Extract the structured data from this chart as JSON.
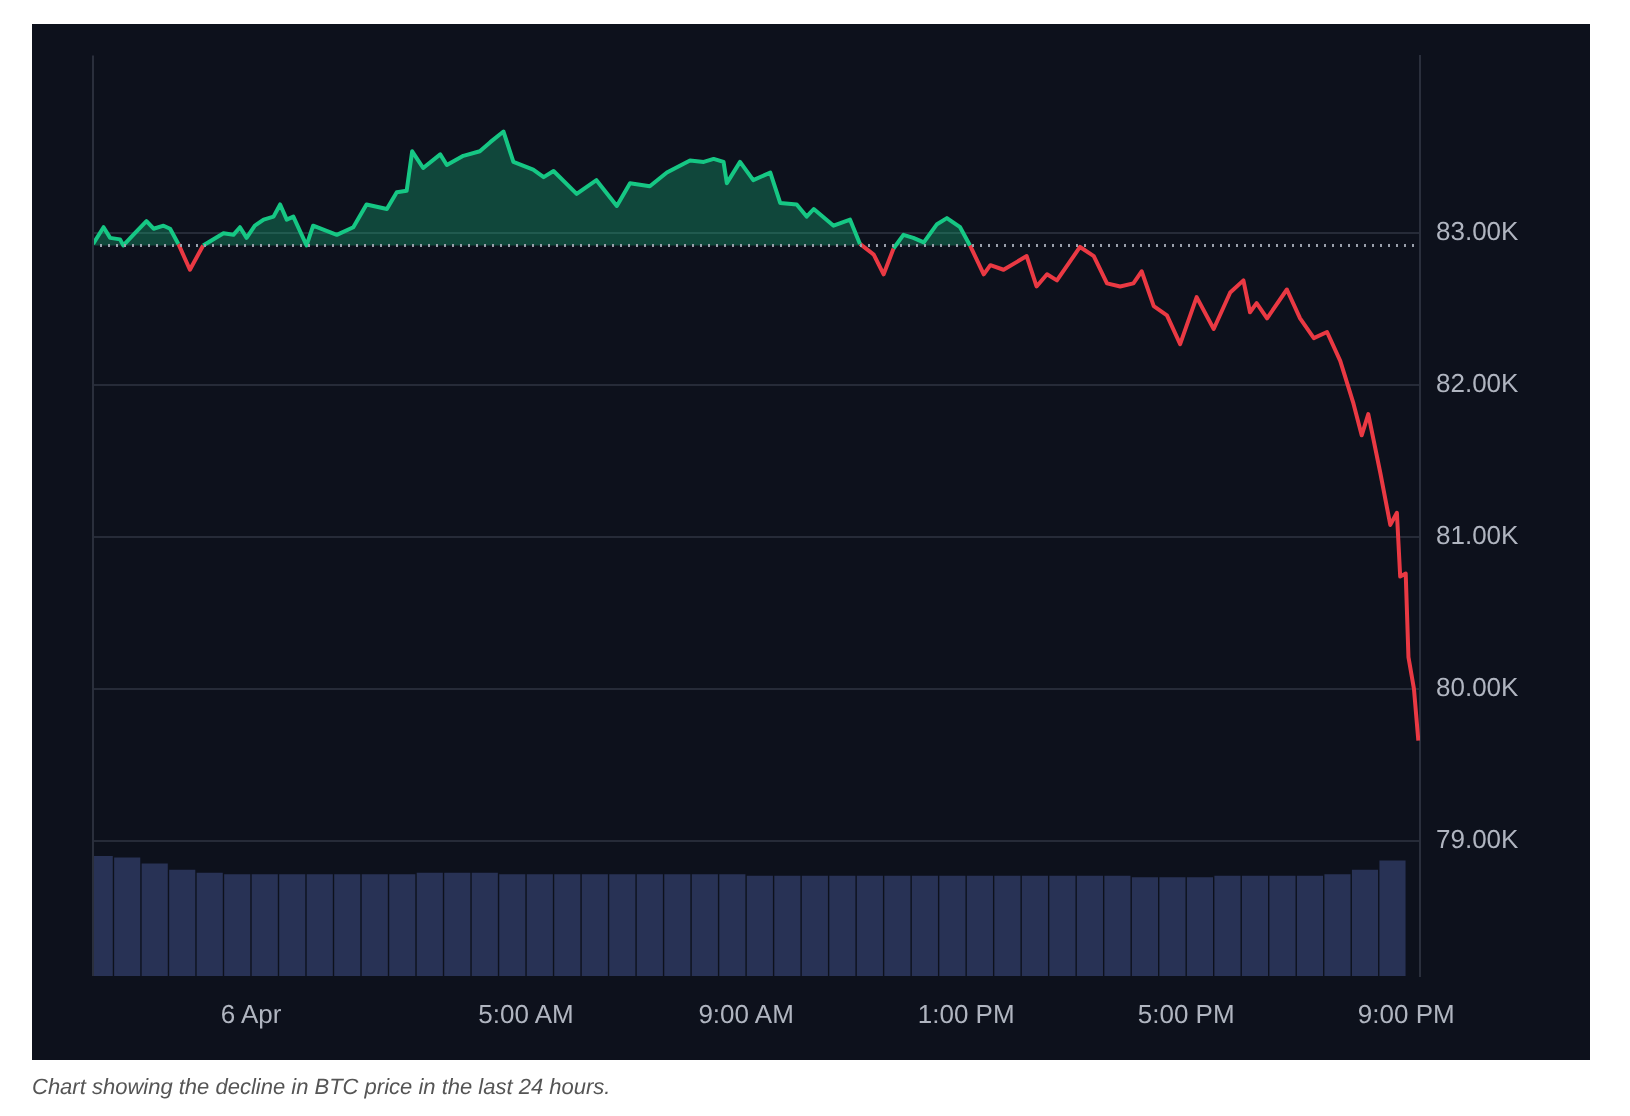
{
  "chart_data": {
    "type": "area",
    "annotations": [
      "Chart showing the decline in BTC price in the last 24 hours."
    ],
    "x": [
      -2.87,
      -2.68,
      -2.56,
      -2.38,
      -2.32,
      -2.14,
      -1.9,
      -1.77,
      -1.59,
      -1.47,
      -1.32,
      -1.11,
      -0.87,
      -0.5,
      -0.32,
      -0.2,
      -0.08,
      0.07,
      0.23,
      0.41,
      0.53,
      0.65,
      0.77,
      1.01,
      1.13,
      1.56,
      1.86,
      2.1,
      2.47,
      2.65,
      2.83,
      2.93,
      3.13,
      3.44,
      3.56,
      3.86,
      4.16,
      4.35,
      4.59,
      4.77,
      5.13,
      5.32,
      5.5,
      5.92,
      6.28,
      6.65,
      6.89,
      7.25,
      7.56,
      7.98,
      8.23,
      8.41,
      8.59,
      8.65,
      8.89,
      9.13,
      9.44,
      9.62,
      9.92,
      10.1,
      10.23,
      10.59,
      10.89,
      11.07,
      11.32,
      11.5,
      11.68,
      11.86,
      12.04,
      12.23,
      12.47,
      12.65,
      12.89,
      13.07,
      13.32,
      13.44,
      13.68,
      14.1,
      14.28,
      14.47,
      14.65,
      15.07,
      15.32,
      15.56,
      15.8,
      16.04,
      16.19,
      16.41,
      16.65,
      16.89,
      17.19,
      17.5,
      17.8,
      18.04,
      18.16,
      18.28,
      18.47,
      18.83,
      19.07,
      19.32,
      19.56,
      19.8,
      20.04,
      20.19,
      20.31,
      20.53,
      20.71,
      20.83,
      20.89,
      20.99,
      21.04,
      21.14,
      21.22
    ],
    "series": [
      {
        "color": "#16c784",
        "values": [
          82.93,
          83.04,
          82.97,
          82.96,
          82.92,
          82.99,
          83.08,
          83.03,
          83.05,
          83.03,
          82.93,
          null,
          82.92,
          83.0,
          82.99,
          83.04,
          82.97,
          83.05,
          83.09,
          83.11,
          83.19,
          83.09,
          83.11,
          82.92,
          83.05,
          82.99,
          83.04,
          83.19,
          83.16,
          83.27,
          83.28,
          83.54,
          83.43,
          83.52,
          83.45,
          83.51,
          83.54,
          83.6,
          83.67,
          83.47,
          83.42,
          83.37,
          83.41,
          83.26,
          83.35,
          83.18,
          83.33,
          83.31,
          83.4,
          83.48,
          83.47,
          83.49,
          83.47,
          83.33,
          83.47,
          83.35,
          83.4,
          83.2,
          83.19,
          83.11,
          83.16,
          83.05,
          83.09,
          82.93,
          null,
          null,
          82.9,
          82.99,
          82.97,
          82.94,
          83.06,
          83.1,
          83.04,
          82.92,
          null,
          null,
          null,
          null,
          null,
          null,
          null,
          null,
          null,
          null,
          null,
          null,
          null,
          null,
          null,
          null,
          null,
          null,
          null,
          null,
          null,
          null,
          null,
          null,
          null,
          null,
          null,
          null,
          null,
          null,
          null,
          null,
          null,
          null,
          null,
          null,
          null,
          null,
          null
        ]
      },
      {
        "type": "line",
        "color": "#ea3943",
        "values": [
          null,
          null,
          null,
          null,
          null,
          null,
          null,
          null,
          null,
          null,
          82.93,
          82.76,
          82.92,
          null,
          null,
          null,
          null,
          null,
          null,
          null,
          null,
          null,
          null,
          null,
          null,
          null,
          null,
          null,
          null,
          null,
          null,
          null,
          null,
          null,
          null,
          null,
          null,
          null,
          null,
          null,
          null,
          null,
          null,
          null,
          null,
          null,
          null,
          null,
          null,
          null,
          null,
          null,
          null,
          null,
          null,
          null,
          null,
          null,
          null,
          null,
          null,
          null,
          null,
          82.93,
          82.86,
          82.73,
          82.9,
          null,
          null,
          null,
          null,
          null,
          null,
          82.92,
          82.73,
          82.79,
          82.76,
          82.85,
          82.65,
          82.73,
          82.69,
          82.91,
          82.85,
          82.67,
          82.65,
          82.67,
          82.75,
          82.52,
          82.46,
          82.27,
          82.58,
          82.37,
          82.61,
          82.69,
          82.48,
          82.54,
          82.44,
          82.63,
          82.44,
          82.31,
          82.35,
          82.16,
          81.88,
          81.67,
          81.81,
          81.42,
          81.08,
          81.16,
          80.74,
          80.76,
          80.21,
          80.0,
          79.66
        ]
      },
      {
        "type": "bar",
        "color": "#283255",
        "x": [
          -2.75,
          -2.25,
          -1.75,
          -1.25,
          -0.75,
          -0.25,
          0.25,
          0.75,
          1.25,
          1.75,
          2.25,
          2.75,
          3.25,
          3.75,
          4.25,
          4.75,
          5.25,
          5.75,
          6.25,
          6.75,
          7.25,
          7.75,
          8.25,
          8.75,
          9.25,
          9.75,
          10.25,
          10.75,
          11.25,
          11.75,
          12.25,
          12.75,
          13.25,
          13.75,
          14.25,
          14.75,
          15.25,
          15.75,
          16.25,
          16.75,
          17.25,
          17.75,
          18.25,
          18.75,
          19.25,
          19.75,
          20.25,
          20.75
        ],
        "values": [
          78.9,
          78.89,
          78.85,
          78.81,
          78.79,
          78.78,
          78.78,
          78.78,
          78.78,
          78.78,
          78.78,
          78.78,
          78.79,
          78.79,
          78.79,
          78.78,
          78.78,
          78.78,
          78.78,
          78.78,
          78.78,
          78.78,
          78.78,
          78.78,
          78.77,
          78.77,
          78.77,
          78.77,
          78.77,
          78.77,
          78.77,
          78.77,
          78.77,
          78.77,
          78.77,
          78.77,
          78.77,
          78.77,
          78.76,
          78.76,
          78.76,
          78.77,
          78.77,
          78.77,
          78.77,
          78.78,
          78.81,
          78.87
        ]
      }
    ],
    "xlim": [
      -2.89,
      21.25
    ],
    "xticks": [
      {
        "value": 0,
        "label": "6 Apr"
      },
      {
        "value": 5,
        "label": "5:00 AM"
      },
      {
        "value": 9,
        "label": "9:00 AM"
      },
      {
        "value": 13,
        "label": "1:00 PM"
      },
      {
        "value": 17,
        "label": "5:00 PM"
      },
      {
        "value": 21,
        "label": "9:00 PM"
      }
    ],
    "ylim": [
      78.11,
      84.17
    ],
    "yticks": [
      {
        "value": 79,
        "label": "79.00K"
      },
      {
        "value": 80,
        "label": "80.00K"
      },
      {
        "value": 81,
        "label": "81.00K"
      },
      {
        "value": 82,
        "label": "82.00K"
      },
      {
        "value": 83,
        "label": "83.00K"
      }
    ],
    "ref_lines": [
      {
        "axis": "y",
        "value": 82.92,
        "color": "#9aa0ac",
        "line_style": "dotted"
      }
    ],
    "grid": "y",
    "legend": false,
    "marker": "none",
    "line_style": "solid"
  }
}
